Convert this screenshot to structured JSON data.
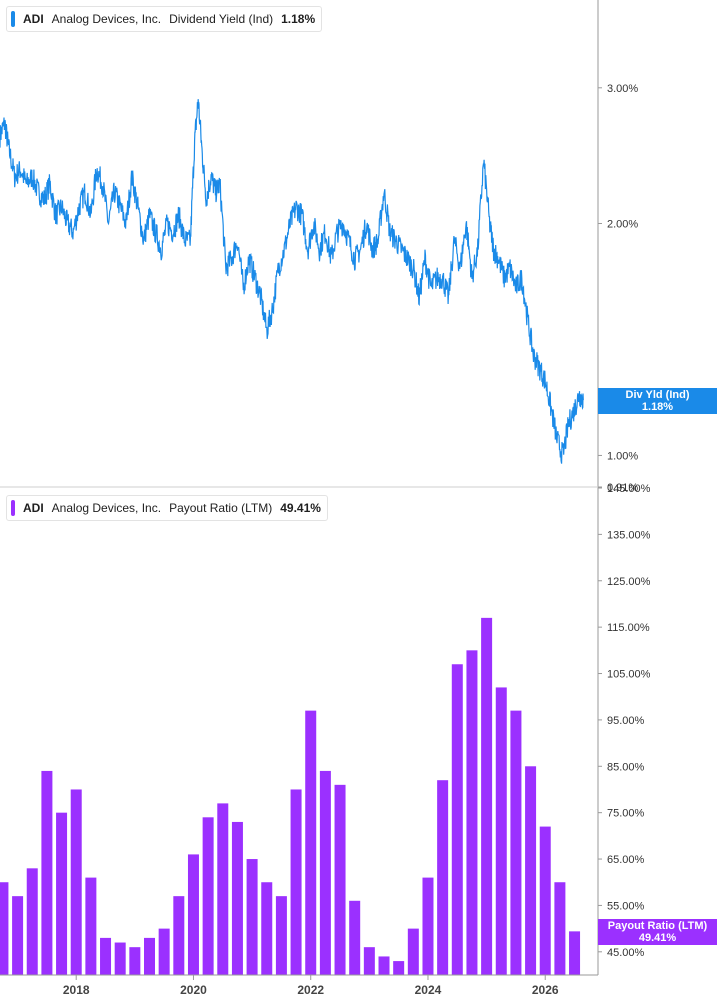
{
  "colors": {
    "yield": "#1a8ae8",
    "payout": "#9b30ff",
    "axis": "#555555",
    "grid": "#eeeeee",
    "text": "#333333"
  },
  "chart_data": [
    {
      "type": "line",
      "legend": {
        "ticker": "ADI",
        "company": "Analog Devices, Inc.",
        "metric": "Dividend Yield (Ind)",
        "value": "1.18%"
      },
      "flag": {
        "label": "Div Yld (Ind)",
        "value": "1.18%"
      },
      "yscale": "log",
      "ylim": [
        0.91,
        3.9
      ],
      "y_ticks": [
        3.0,
        2.0,
        1.0,
        0.91
      ],
      "y_tick_labels": [
        "3.00%",
        "2.00%",
        "1.00%",
        "0.91%"
      ],
      "xlim": [
        2016.7,
        2026.9
      ],
      "series": [
        {
          "x": [
            2016.7,
            2016.78,
            2016.85,
            2016.95,
            2017.05,
            2017.15,
            2017.25,
            2017.35,
            2017.45,
            2017.55,
            2017.65,
            2017.75,
            2017.85,
            2017.95,
            2018.05,
            2018.15,
            2018.25,
            2018.35,
            2018.45,
            2018.55,
            2018.65,
            2018.75,
            2018.85,
            2018.95,
            2019.05,
            2019.15,
            2019.25,
            2019.35,
            2019.45,
            2019.55,
            2019.65,
            2019.75,
            2019.85,
            2019.95,
            2020.02,
            2020.08,
            2020.15,
            2020.22,
            2020.3,
            2020.38,
            2020.45,
            2020.55,
            2020.65,
            2020.75,
            2020.85,
            2020.95,
            2021.05,
            2021.15,
            2021.25,
            2021.35,
            2021.45,
            2021.55,
            2021.65,
            2021.75,
            2021.85,
            2021.95,
            2022.05,
            2022.15,
            2022.25,
            2022.35,
            2022.45,
            2022.55,
            2022.65,
            2022.75,
            2022.85,
            2022.95,
            2023.05,
            2023.15,
            2023.25,
            2023.35,
            2023.45,
            2023.55,
            2023.65,
            2023.75,
            2023.85,
            2023.95,
            2024.05,
            2024.15,
            2024.25,
            2024.35,
            2024.45,
            2024.55,
            2024.65,
            2024.75,
            2024.85,
            2024.95,
            2025.05,
            2025.12,
            2025.2,
            2025.3,
            2025.4,
            2025.5,
            2025.6,
            2025.7,
            2025.8,
            2025.9,
            2026.0,
            2026.1,
            2026.2,
            2026.3,
            2026.4,
            2026.5,
            2026.58,
            2026.65
          ],
          "y": [
            2.6,
            2.7,
            2.5,
            2.3,
            2.35,
            2.25,
            2.3,
            2.2,
            2.15,
            2.25,
            2.05,
            2.1,
            2.0,
            1.95,
            2.1,
            2.2,
            2.05,
            2.35,
            2.25,
            2.0,
            2.2,
            2.1,
            2.0,
            2.3,
            2.1,
            1.9,
            2.05,
            1.95,
            1.85,
            2.0,
            1.95,
            2.05,
            1.9,
            1.9,
            2.55,
            2.9,
            2.45,
            2.15,
            2.3,
            2.2,
            2.25,
            1.75,
            1.8,
            1.9,
            1.65,
            1.8,
            1.7,
            1.6,
            1.45,
            1.55,
            1.75,
            1.85,
            2.0,
            2.1,
            2.05,
            1.85,
            2.0,
            1.85,
            1.95,
            1.8,
            1.95,
            2.0,
            1.9,
            1.8,
            1.85,
            2.0,
            1.85,
            1.9,
            2.2,
            1.95,
            1.9,
            1.85,
            1.8,
            1.75,
            1.6,
            1.8,
            1.65,
            1.7,
            1.7,
            1.6,
            1.9,
            1.75,
            2.0,
            1.7,
            1.85,
            2.4,
            2.0,
            1.85,
            1.8,
            1.7,
            1.75,
            1.65,
            1.7,
            1.5,
            1.35,
            1.3,
            1.25,
            1.15,
            1.05,
            1.0,
            1.1,
            1.15,
            1.2,
            1.18
          ]
        }
      ]
    },
    {
      "type": "bar",
      "legend": {
        "ticker": "ADI",
        "company": "Analog Devices, Inc.",
        "metric": "Payout Ratio (LTM)",
        "value": "49.41%"
      },
      "flag": {
        "label": "Payout Ratio (LTM)",
        "value": "49.41%"
      },
      "ylim": [
        40,
        145
      ],
      "y_ticks": [
        145,
        135,
        125,
        115,
        105,
        95,
        85,
        75,
        65,
        55,
        45
      ],
      "y_tick_labels": [
        "145.00%",
        "135.00%",
        "125.00%",
        "115.00%",
        "105.00%",
        "95.00%",
        "85.00%",
        "75.00%",
        "65.00%",
        "55.00%",
        "45.00%"
      ],
      "x_ticks": [
        2018,
        2020,
        2022,
        2024,
        2026
      ],
      "x_tick_labels": [
        "2018",
        "2020",
        "2022",
        "2024",
        "2026"
      ],
      "xlim": [
        2016.7,
        2026.9
      ],
      "series": [
        {
          "x": [
            2016.75,
            2017.0,
            2017.25,
            2017.5,
            2017.75,
            2018.0,
            2018.25,
            2018.5,
            2018.75,
            2019.0,
            2019.25,
            2019.5,
            2019.75,
            2020.0,
            2020.25,
            2020.5,
            2020.75,
            2021.0,
            2021.25,
            2021.5,
            2021.75,
            2022.0,
            2022.25,
            2022.5,
            2022.75,
            2023.0,
            2023.25,
            2023.5,
            2023.75,
            2024.0,
            2024.25,
            2024.5,
            2024.75,
            2025.0,
            2025.25,
            2025.5,
            2025.75,
            2026.0,
            2026.25,
            2026.5
          ],
          "values": [
            60,
            57,
            63,
            84,
            75,
            80,
            61,
            48,
            47,
            46,
            48,
            50,
            57,
            66,
            74,
            77,
            73,
            65,
            60,
            57,
            80,
            97,
            84,
            81,
            56,
            46,
            44,
            43,
            50,
            61,
            82,
            107,
            110,
            117,
            102,
            97,
            85,
            72,
            60,
            49.41
          ]
        }
      ]
    }
  ]
}
